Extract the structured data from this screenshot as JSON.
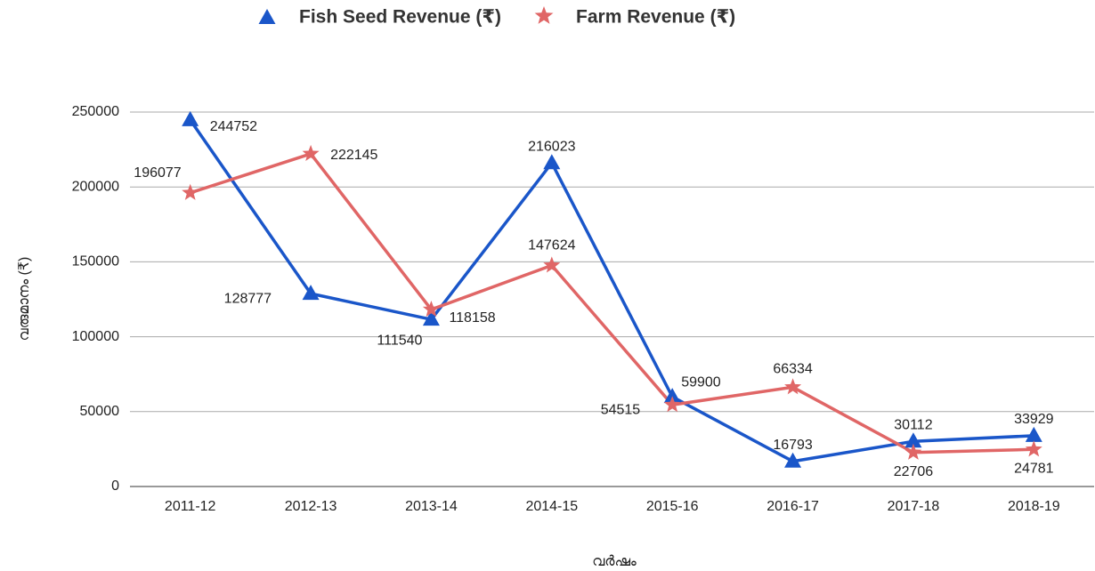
{
  "chart_data": {
    "type": "line",
    "categories": [
      "2011-12",
      "2012-13",
      "2013-14",
      "2014-15",
      "2015-16",
      "2016-17",
      "2017-18",
      "2018-19"
    ],
    "series": [
      {
        "name": "Fish Seed Revenue (₹)",
        "color": "#1a56c9",
        "marker": "triangle",
        "values": [
          244752,
          128777,
          111540,
          216023,
          59900,
          16793,
          30112,
          33929
        ]
      },
      {
        "name": "Farm Revenue (₹)",
        "color": "#e06666",
        "marker": "star",
        "values": [
          196077,
          222145,
          118158,
          147624,
          54515,
          66334,
          22706,
          24781
        ]
      }
    ],
    "xlabel": "വർഷം",
    "ylabel": "വരുമാനം  (₹)",
    "ylim": [
      0,
      250000
    ],
    "yticks": [
      0,
      50000,
      100000,
      150000,
      200000,
      250000
    ],
    "grid": true,
    "legend": "top"
  }
}
